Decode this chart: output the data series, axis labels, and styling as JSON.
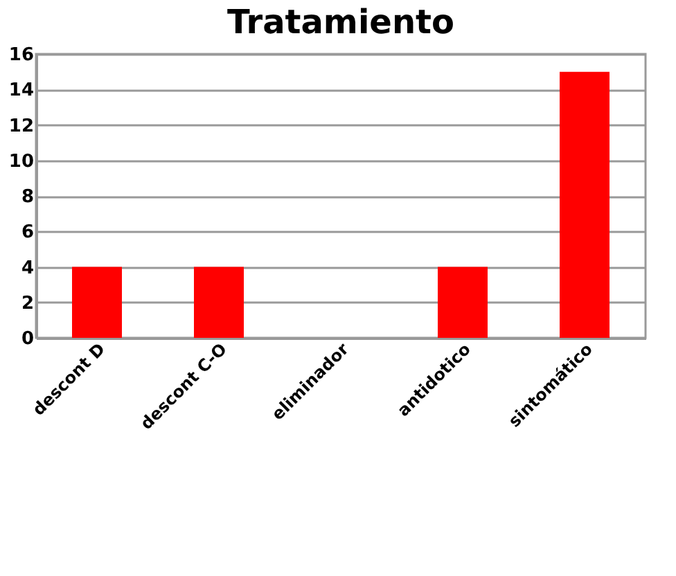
{
  "chart_data": {
    "type": "bar",
    "title": "Tratamiento",
    "categories": [
      "descont D",
      "descont C-O",
      "eliminador",
      "antidotico",
      "sintomático"
    ],
    "values": [
      4,
      4,
      0,
      4,
      15
    ],
    "color": "#ff0000",
    "ylim": [
      0,
      16
    ],
    "yticks": [
      0,
      2,
      4,
      6,
      8,
      10,
      12,
      14,
      16
    ],
    "grid": "y"
  }
}
